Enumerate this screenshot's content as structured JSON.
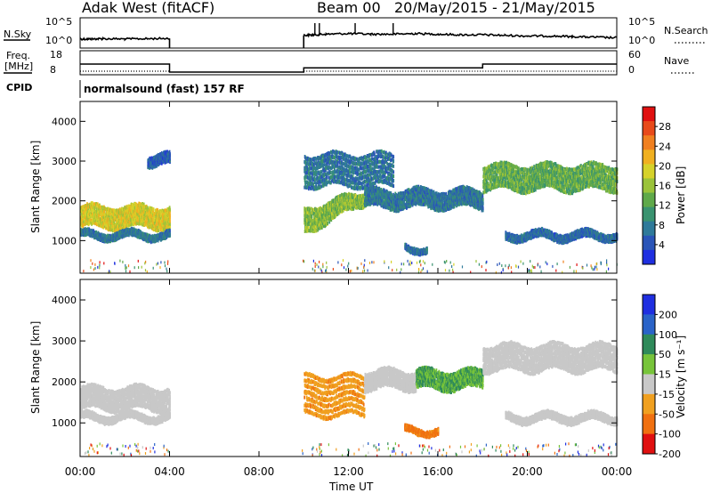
{
  "header": {
    "station": "Adak West (fitACF)",
    "beam": "Beam 00",
    "date_range": "20/May/2015 - 21/May/2015"
  },
  "side_labels": {
    "nsky": "N.Sky",
    "freq_line1": "Freq.",
    "freq_line2": "[MHz]",
    "cpid": "CPID",
    "nsearch": "N.Search",
    "nave": "Nave"
  },
  "cpid_text": "normalsound (fast) 157 RF",
  "noise_panel": {
    "left_ticks": [
      "10^5",
      "10^0"
    ],
    "right_ticks": [
      "10^5",
      "10^0"
    ]
  },
  "freq_panel": {
    "left_ticks": [
      "18",
      "8"
    ],
    "right_ticks": [
      "60",
      "0"
    ]
  },
  "chart_data": [
    {
      "type": "line",
      "panel": "noise",
      "x_unit": "hours UT from 00:00",
      "series": [
        {
          "name": "N.Sky",
          "x": [
            0,
            0.5,
            1,
            2,
            3,
            4,
            4.0,
            10,
            10.5,
            11,
            12,
            13,
            14,
            15,
            16,
            17,
            18,
            19,
            20,
            21,
            22,
            23,
            24
          ],
          "y_log10": [
            1.2,
            1.2,
            1.25,
            1.2,
            1.25,
            1.3,
            0,
            1.8,
            1.9,
            2.0,
            2.1,
            2.0,
            2.0,
            2.1,
            2.0,
            1.9,
            1.9,
            1.8,
            1.7,
            1.7,
            1.6,
            1.5,
            1.4
          ]
        }
      ]
    },
    {
      "type": "line",
      "panel": "frequency",
      "series": [
        {
          "name": "Freq. [MHz]",
          "x": [
            0,
            4,
            4,
            10,
            10,
            18,
            18,
            24
          ],
          "y": [
            12.3,
            12.3,
            8,
            8,
            10.3,
            10.3,
            12.3,
            12.3
          ]
        },
        {
          "name": "Nave",
          "x": [
            0,
            4,
            10,
            24
          ],
          "y": [
            10,
            10,
            10,
            10
          ]
        }
      ]
    },
    {
      "type": "heatmap",
      "panel": "power",
      "title": "",
      "xlabel": "",
      "ylabel": "Slant Range [km]",
      "xlim": [
        0,
        24
      ],
      "ylim": [
        180,
        4500
      ],
      "y_ticks": [
        1000,
        2000,
        3000,
        4000
      ],
      "colorbar": {
        "label": "Power [dB]",
        "ticks": [
          "4",
          "8",
          "12",
          "16",
          "20",
          "24",
          "28"
        ],
        "colors": [
          "#1f2fe0",
          "#2a55b8",
          "#2f7a9a",
          "#3a9370",
          "#5fa94a",
          "#9bc33a",
          "#d6d22a",
          "#f0b020",
          "#f08020",
          "#e84a1a",
          "#e01010"
        ]
      },
      "features": [
        {
          "x": [
            0,
            4
          ],
          "range": [
            1400,
            1950
          ],
          "level_db": 18
        },
        {
          "x": [
            0,
            4
          ],
          "range": [
            1120,
            1250
          ],
          "level_db": 6
        },
        {
          "x": [
            3.0,
            4
          ],
          "range": [
            2950,
            3200
          ],
          "level_db": 4
        },
        {
          "x": [
            10,
            12.7
          ],
          "range_start": [
            1250,
            1900
          ],
          "range_end": [
            2000,
            2300
          ],
          "level_db": 14
        },
        {
          "x": [
            10,
            14.0
          ],
          "range": [
            2450,
            3300
          ],
          "level_db": 6
        },
        {
          "x": [
            12.7,
            18
          ],
          "range": [
            1900,
            2350
          ],
          "level_db": 6
        },
        {
          "x": [
            18,
            24
          ],
          "range": [
            2350,
            3000
          ],
          "level_db": 12
        },
        {
          "x": [
            19,
            24
          ],
          "range": [
            1100,
            1250
          ],
          "level_db": 5
        },
        {
          "x": [
            14.5,
            15.5
          ],
          "range": [
            800,
            900
          ],
          "level_db": 5
        }
      ]
    },
    {
      "type": "heatmap",
      "panel": "velocity",
      "ylabel": "Slant Range [km]",
      "xlabel": "Time UT",
      "xlim": [
        0,
        24
      ],
      "ylim": [
        180,
        4500
      ],
      "y_ticks": [
        1000,
        2000,
        3000,
        4000
      ],
      "x_ticks": [
        "00:00",
        "04:00",
        "08:00",
        "12:00",
        "16:00",
        "20:00",
        "00:00"
      ],
      "colorbar": {
        "label": "Velocity [m s⁻¹]",
        "ticks": [
          "200",
          "100",
          "50",
          "15",
          "-15",
          "-50",
          "-100",
          "-200"
        ],
        "colors": [
          "#1f2fe0",
          "#2a63c8",
          "#2f8a5a",
          "#77c43a",
          "#c8c8c8",
          "#f0a020",
          "#f07010",
          "#e01010"
        ]
      },
      "features": [
        {
          "x": [
            0,
            4
          ],
          "range": [
            1400,
            1950
          ],
          "velocity": 0
        },
        {
          "x": [
            0,
            4
          ],
          "range": [
            1120,
            1250
          ],
          "velocity": 0
        },
        {
          "x": [
            10,
            12.7
          ],
          "range": [
            1250,
            2300
          ],
          "velocity": -40
        },
        {
          "x": [
            12.7,
            15
          ],
          "range": [
            1900,
            2350
          ],
          "velocity": 0
        },
        {
          "x": [
            15,
            18
          ],
          "range": [
            1900,
            2350
          ],
          "velocity": 30
        },
        {
          "x": [
            18,
            24
          ],
          "range": [
            2350,
            3000
          ],
          "velocity": 0
        },
        {
          "x": [
            19,
            24
          ],
          "range": [
            1100,
            1250
          ],
          "velocity": 0
        },
        {
          "x": [
            14.5,
            16
          ],
          "range": [
            800,
            900
          ],
          "velocity": -60
        }
      ]
    }
  ]
}
